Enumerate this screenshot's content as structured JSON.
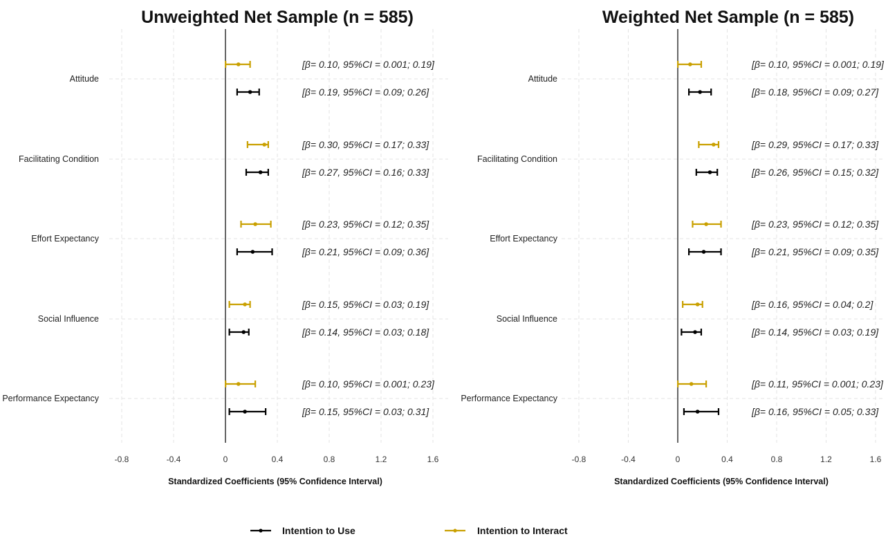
{
  "colors": {
    "use": "#000000",
    "interact": "#c9a000"
  },
  "legend": [
    {
      "name": "Intention to Use",
      "color": "#000000"
    },
    {
      "name": "Intention to Interact",
      "color": "#c9a000"
    }
  ],
  "chart_data": [
    {
      "type": "forest",
      "title": "Unweighted Net Sample  (n = 585)",
      "xlabel": "Standardized Coefficients (95% Confidence Interval)",
      "ylabel": "",
      "xlim": [
        -0.8,
        1.6
      ],
      "x_ticks": [
        "-0.8",
        "-0.4",
        "0",
        "0.4",
        "0.8",
        "1.2",
        "1.6"
      ],
      "grid": true,
      "legend_position": "bottom",
      "categories": [
        "Attitude",
        "Facilitating Condition",
        "Effort Expectancy",
        "Social Influence",
        "Performance Expectancy"
      ],
      "series": [
        {
          "name": "Intention to Interact",
          "estimates": [
            0.1,
            0.3,
            0.23,
            0.15,
            0.1
          ],
          "ci_low": [
            0.001,
            0.17,
            0.12,
            0.03,
            0.001
          ],
          "ci_high": [
            0.19,
            0.33,
            0.35,
            0.19,
            0.23
          ],
          "labels": [
            "[β= 0.10, 95%CI =  0.001; 0.19]",
            "[β= 0.30, 95%CI =  0.17; 0.33]",
            "[β= 0.23, 95%CI =  0.12; 0.35]",
            "[β= 0.15, 95%CI =  0.03; 0.19]",
            "[β= 0.10, 95%CI =  0.001; 0.23]"
          ]
        },
        {
          "name": "Intention to Use",
          "estimates": [
            0.19,
            0.27,
            0.21,
            0.14,
            0.15
          ],
          "ci_low": [
            0.09,
            0.16,
            0.09,
            0.03,
            0.03
          ],
          "ci_high": [
            0.26,
            0.33,
            0.36,
            0.18,
            0.31
          ],
          "labels": [
            "[β= 0.19, 95%CI =  0.09; 0.26]",
            "[β= 0.27, 95%CI =  0.16; 0.33]",
            "[β= 0.21, 95%CI =  0.09; 0.36]",
            "[β= 0.14, 95%CI =  0.03; 0.18]",
            "[β= 0.15, 95%CI =  0.03; 0.31]"
          ]
        }
      ]
    },
    {
      "type": "forest",
      "title": "Weighted Net Sample (n = 585)",
      "xlabel": "Standardized Coefficients (95% Confidence Interval)",
      "ylabel": "",
      "xlim": [
        -0.8,
        1.6
      ],
      "x_ticks": [
        "-0.8",
        "-0.4",
        "0",
        "0.4",
        "0.8",
        "1.2",
        "1.6"
      ],
      "grid": true,
      "legend_position": "bottom",
      "categories": [
        "Attitude",
        "Facilitating Condition",
        "Effort Expectancy",
        "Social Influence",
        "Performance Expectancy"
      ],
      "series": [
        {
          "name": "Intention to Interact",
          "estimates": [
            0.1,
            0.29,
            0.23,
            0.16,
            0.11
          ],
          "ci_low": [
            0.001,
            0.17,
            0.12,
            0.04,
            0.001
          ],
          "ci_high": [
            0.19,
            0.33,
            0.35,
            0.2,
            0.23
          ],
          "labels": [
            "[β= 0.10, 95%CI = 0.001; 0.19]",
            "[β= 0.29, 95%CI = 0.17; 0.33]",
            "[β= 0.23, 95%CI = 0.12; 0.35]",
            "[β= 0.16, 95%CI = 0.04; 0.2]",
            "[β= 0.11, 95%CI = 0.001; 0.23]"
          ]
        },
        {
          "name": "Intention to Use",
          "estimates": [
            0.18,
            0.26,
            0.21,
            0.14,
            0.16
          ],
          "ci_low": [
            0.09,
            0.15,
            0.09,
            0.03,
            0.05
          ],
          "ci_high": [
            0.27,
            0.32,
            0.35,
            0.19,
            0.33
          ],
          "labels": [
            "[β= 0.18, 95%CI = 0.09; 0.27]",
            "[β= 0.26, 95%CI = 0.15; 0.32]",
            "[β= 0.21, 95%CI = 0.09; 0.35]",
            "[β= 0.14, 95%CI = 0.03; 0.19]",
            "[β= 0.16, 95%CI = 0.05; 0.33]"
          ]
        }
      ]
    }
  ]
}
